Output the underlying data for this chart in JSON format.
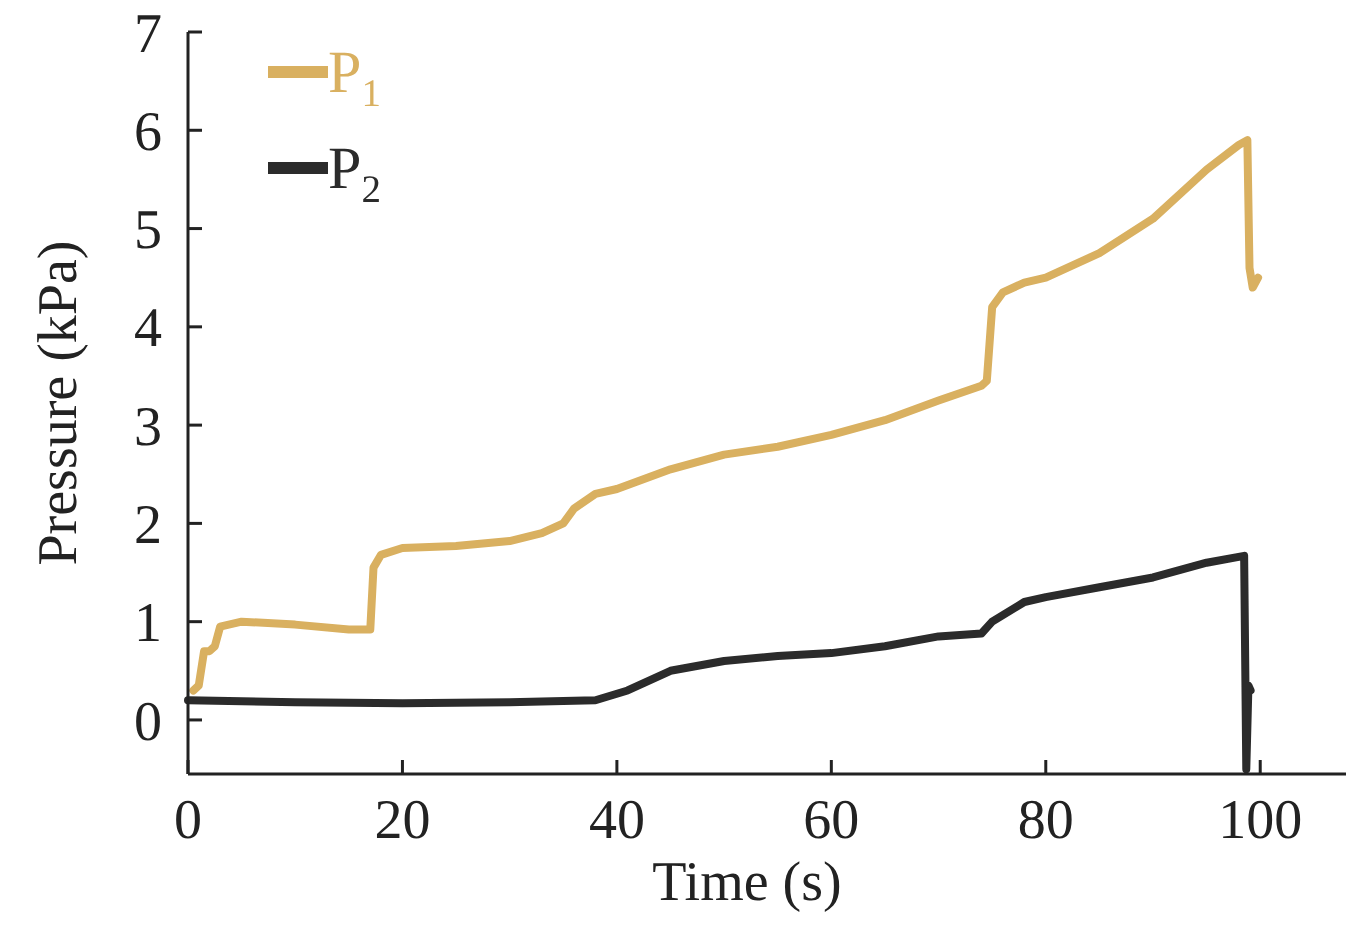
{
  "chart_data": {
    "type": "line",
    "xlabel": "Time (s)",
    "ylabel": "Pressure (kPa)",
    "xlim": [
      0,
      108
    ],
    "xticks": [
      0,
      20,
      40,
      60,
      80,
      100
    ],
    "ylim": [
      -0.55,
      7
    ],
    "yticks": [
      0,
      1,
      2,
      3,
      4,
      5,
      6,
      7
    ],
    "grid": false,
    "legend": "top left",
    "line_style": "solid",
    "series": [
      {
        "name": "P$_{1}$",
        "color": "#d9b060",
        "x": [
          0.5,
          1,
          1.5,
          2,
          2.5,
          3,
          5,
          10,
          15,
          17,
          17.3,
          18,
          20,
          25,
          30,
          33,
          35,
          36,
          38,
          40,
          45,
          50,
          55,
          60,
          65,
          70,
          74,
          74.5,
          75,
          76,
          78,
          80,
          85,
          90,
          95,
          98,
          98.8,
          99,
          99.3,
          99.8
        ],
        "values": [
          0.3,
          0.35,
          0.7,
          0.7,
          0.75,
          0.95,
          1.0,
          0.97,
          0.92,
          0.92,
          1.55,
          1.68,
          1.75,
          1.77,
          1.82,
          1.9,
          2.0,
          2.15,
          2.3,
          2.35,
          2.55,
          2.7,
          2.78,
          2.9,
          3.05,
          3.25,
          3.4,
          3.45,
          4.2,
          4.35,
          4.45,
          4.5,
          4.75,
          5.1,
          5.6,
          5.85,
          5.9,
          4.6,
          4.4,
          4.5
        ]
      },
      {
        "name": "P$_{2}$",
        "color": "#2b2b2b",
        "x": [
          0,
          10,
          20,
          30,
          38,
          41,
          45,
          50,
          55,
          60,
          65,
          70,
          74,
          75,
          78,
          80,
          85,
          90,
          95,
          98.5,
          98.7,
          98.9,
          99.1
        ],
        "values": [
          0.2,
          0.18,
          0.17,
          0.18,
          0.2,
          0.3,
          0.5,
          0.6,
          0.65,
          0.68,
          0.75,
          0.85,
          0.88,
          1.0,
          1.2,
          1.25,
          1.35,
          1.45,
          1.6,
          1.67,
          -0.5,
          0.35,
          0.3
        ]
      }
    ]
  }
}
